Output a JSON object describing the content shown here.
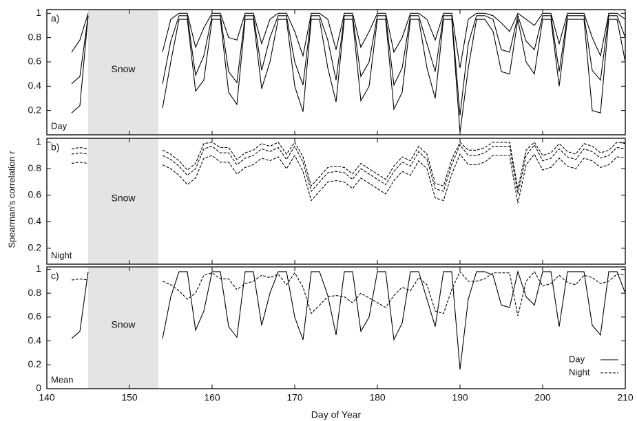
{
  "chart_data": [
    {
      "type": "line",
      "panel_label": "a)",
      "annotation": "Day",
      "shaded_region": {
        "xlim": [
          145,
          153.5
        ],
        "label": "Snow"
      },
      "x": [
        143,
        144,
        145,
        149,
        154,
        155,
        156,
        157,
        158,
        159,
        160,
        161,
        162,
        163,
        164,
        165,
        166,
        167,
        168,
        169,
        170,
        171,
        172,
        173,
        174,
        175,
        176,
        177,
        178,
        179,
        180,
        181,
        182,
        183,
        184,
        185,
        186,
        187,
        188,
        189,
        190,
        191,
        192,
        193,
        194,
        195,
        196,
        197,
        198,
        199,
        200,
        201,
        202,
        203,
        204,
        205,
        206,
        207,
        208,
        209,
        210
      ],
      "xlim": [
        140,
        210
      ],
      "xticks": [
        140,
        150,
        160,
        170,
        180,
        190,
        200,
        210
      ],
      "ylim": [
        0,
        1.03
      ],
      "yticks": [
        0.2,
        0.4,
        0.6,
        0.8,
        1
      ],
      "series": [
        {
          "color": "#000",
          "dash": false,
          "values": [
            0.68,
            0.78,
            1,
            null,
            0.68,
            0.95,
            1,
            1,
            0.72,
            0.88,
            1,
            1,
            0.8,
            0.78,
            1,
            1,
            0.75,
            0.95,
            1,
            1,
            0.85,
            0.65,
            1,
            1,
            0.95,
            0.7,
            1,
            1,
            0.72,
            0.85,
            1,
            1,
            0.68,
            0.8,
            1,
            1,
            0.95,
            0.78,
            1,
            1,
            0.55,
            0.95,
            1,
            1,
            0.98,
            0.92,
            0.85,
            1,
            0.95,
            0.9,
            1,
            1,
            0.75,
            1,
            1,
            1,
            0.8,
            0.65,
            1,
            1,
            0.95
          ]
        },
        {
          "color": "#000",
          "dash": false,
          "values": [
            0.42,
            0.48,
            0.98,
            null,
            0.42,
            0.77,
            0.98,
            0.98,
            0.49,
            0.65,
            0.98,
            0.98,
            0.52,
            0.43,
            0.98,
            0.98,
            0.53,
            0.8,
            0.98,
            0.98,
            0.6,
            0.41,
            0.98,
            0.98,
            0.78,
            0.45,
            0.98,
            0.98,
            0.48,
            0.6,
            0.98,
            0.98,
            0.41,
            0.55,
            0.98,
            0.98,
            0.75,
            0.52,
            0.98,
            0.98,
            0.16,
            0.75,
            0.98,
            0.98,
            0.95,
            0.7,
            0.68,
            0.98,
            0.77,
            0.7,
            0.98,
            0.98,
            0.52,
            0.98,
            0.98,
            0.98,
            0.53,
            0.45,
            0.98,
            0.98,
            0.8
          ]
        },
        {
          "color": "#000",
          "dash": false,
          "values": [
            0.18,
            0.24,
            0.98,
            null,
            0.22,
            0.6,
            0.95,
            0.95,
            0.36,
            0.45,
            0.95,
            0.95,
            0.35,
            0.25,
            0.95,
            0.95,
            0.38,
            0.6,
            0.95,
            0.95,
            0.4,
            0.19,
            0.95,
            0.95,
            0.55,
            0.27,
            0.95,
            0.95,
            0.28,
            0.4,
            0.95,
            0.95,
            0.21,
            0.35,
            0.95,
            0.95,
            0.55,
            0.3,
            0.95,
            0.95,
            0.02,
            0.55,
            0.95,
            0.95,
            0.85,
            0.52,
            0.5,
            0.95,
            0.6,
            0.5,
            0.95,
            0.95,
            0.4,
            0.95,
            0.95,
            0.95,
            0.2,
            0.18,
            0.95,
            0.95,
            0.6
          ]
        }
      ]
    },
    {
      "type": "line",
      "panel_label": "b)",
      "annotation": "Night",
      "shaded_region": {
        "xlim": [
          145,
          153.5
        ],
        "label": "Snow"
      },
      "ylabel": "Spearman's correlation r",
      "x": [
        143,
        144,
        145,
        149,
        154,
        155,
        156,
        157,
        158,
        159,
        160,
        161,
        162,
        163,
        164,
        165,
        166,
        167,
        168,
        169,
        170,
        171,
        172,
        173,
        174,
        175,
        176,
        177,
        178,
        179,
        180,
        181,
        182,
        183,
        184,
        185,
        186,
        187,
        188,
        189,
        190,
        191,
        192,
        193,
        194,
        195,
        196,
        197,
        198,
        199,
        200,
        201,
        202,
        203,
        204,
        205,
        206,
        207,
        208,
        209,
        210
      ],
      "xlim": [
        140,
        210
      ],
      "xticks": [
        140,
        150,
        160,
        170,
        180,
        190,
        200,
        210
      ],
      "ylim": [
        0.08,
        1.03
      ],
      "yticks": [
        0.2,
        0.4,
        0.6,
        0.8,
        1
      ],
      "series": [
        {
          "color": "#000",
          "dash": true,
          "values": [
            0.95,
            0.96,
            0.95,
            null,
            0.94,
            0.91,
            0.86,
            0.79,
            0.84,
            0.99,
            1,
            0.96,
            0.96,
            0.87,
            0.92,
            0.94,
            0.99,
            0.97,
            1,
            0.91,
            1,
            0.89,
            0.67,
            0.74,
            0.81,
            0.82,
            0.81,
            0.76,
            0.84,
            0.8,
            0.76,
            0.72,
            0.82,
            0.89,
            0.86,
            0.97,
            0.91,
            0.69,
            0.67,
            0.87,
            1,
            0.94,
            0.94,
            0.96,
            1,
            1,
            1,
            0.65,
            0.94,
            1,
            0.9,
            0.92,
            0.99,
            0.93,
            0.91,
            0.99,
            0.97,
            0.92,
            0.94,
            1,
            0.99
          ]
        },
        {
          "color": "#000",
          "dash": true,
          "values": [
            0.91,
            0.92,
            0.91,
            null,
            0.9,
            0.87,
            0.82,
            0.75,
            0.8,
            0.95,
            0.97,
            0.92,
            0.92,
            0.83,
            0.88,
            0.9,
            0.95,
            0.93,
            0.96,
            0.87,
            0.97,
            0.85,
            0.63,
            0.7,
            0.77,
            0.78,
            0.77,
            0.72,
            0.8,
            0.76,
            0.72,
            0.68,
            0.78,
            0.85,
            0.82,
            0.93,
            0.87,
            0.65,
            0.63,
            0.83,
            0.98,
            0.9,
            0.9,
            0.92,
            0.97,
            0.97,
            0.97,
            0.61,
            0.9,
            0.98,
            0.86,
            0.88,
            0.95,
            0.89,
            0.87,
            0.95,
            0.93,
            0.88,
            0.9,
            0.96,
            0.95
          ]
        },
        {
          "color": "#000",
          "dash": true,
          "values": [
            0.84,
            0.85,
            0.84,
            null,
            0.83,
            0.8,
            0.75,
            0.68,
            0.73,
            0.88,
            0.9,
            0.85,
            0.85,
            0.76,
            0.81,
            0.83,
            0.88,
            0.86,
            0.89,
            0.8,
            0.9,
            0.78,
            0.56,
            0.63,
            0.7,
            0.71,
            0.7,
            0.65,
            0.73,
            0.69,
            0.65,
            0.61,
            0.71,
            0.78,
            0.75,
            0.86,
            0.8,
            0.58,
            0.56,
            0.76,
            0.91,
            0.83,
            0.83,
            0.85,
            0.9,
            0.9,
            0.9,
            0.54,
            0.83,
            0.91,
            0.79,
            0.81,
            0.88,
            0.82,
            0.8,
            0.88,
            0.86,
            0.81,
            0.83,
            0.89,
            0.88
          ]
        }
      ]
    },
    {
      "type": "line",
      "panel_label": "c)",
      "annotation": "Mean",
      "shaded_region": {
        "xlim": [
          145,
          153.5
        ],
        "label": "Snow"
      },
      "xlabel": "Day of Year",
      "legend": "lower right",
      "x": [
        143,
        144,
        145,
        149,
        154,
        155,
        156,
        157,
        158,
        159,
        160,
        161,
        162,
        163,
        164,
        165,
        166,
        167,
        168,
        169,
        170,
        171,
        172,
        173,
        174,
        175,
        176,
        177,
        178,
        179,
        180,
        181,
        182,
        183,
        184,
        185,
        186,
        187,
        188,
        189,
        190,
        191,
        192,
        193,
        194,
        195,
        196,
        197,
        198,
        199,
        200,
        201,
        202,
        203,
        204,
        205,
        206,
        207,
        208,
        209,
        210
      ],
      "xlim": [
        140,
        210
      ],
      "xticks": [
        140,
        150,
        160,
        170,
        180,
        190,
        200,
        210
      ],
      "ylim": [
        0,
        1.02
      ],
      "yticks": [
        0,
        0.2,
        0.4,
        0.6,
        0.8,
        1
      ],
      "series": [
        {
          "name": "Day",
          "color": "#000",
          "dash": false,
          "values": [
            0.42,
            0.48,
            0.98,
            null,
            0.42,
            0.77,
            0.98,
            0.98,
            0.49,
            0.65,
            0.98,
            0.98,
            0.52,
            0.43,
            0.98,
            0.98,
            0.53,
            0.8,
            0.98,
            0.98,
            0.6,
            0.41,
            0.98,
            0.98,
            0.78,
            0.45,
            0.98,
            0.98,
            0.48,
            0.6,
            0.98,
            0.98,
            0.41,
            0.55,
            0.98,
            0.98,
            0.75,
            0.52,
            0.98,
            0.98,
            0.16,
            0.75,
            0.98,
            0.98,
            0.95,
            0.7,
            0.68,
            0.98,
            0.77,
            0.7,
            0.98,
            0.98,
            0.52,
            0.98,
            0.98,
            0.98,
            0.53,
            0.45,
            0.98,
            0.98,
            0.8
          ]
        },
        {
          "name": "Night",
          "color": "#000",
          "dash": true,
          "values": [
            0.91,
            0.92,
            0.91,
            null,
            0.9,
            0.87,
            0.82,
            0.75,
            0.8,
            0.95,
            0.97,
            0.92,
            0.92,
            0.83,
            0.88,
            0.9,
            0.95,
            0.93,
            0.96,
            0.87,
            0.97,
            0.85,
            0.63,
            0.7,
            0.77,
            0.78,
            0.77,
            0.72,
            0.8,
            0.76,
            0.72,
            0.68,
            0.78,
            0.85,
            0.82,
            0.93,
            0.87,
            0.65,
            0.63,
            0.83,
            0.98,
            0.9,
            0.9,
            0.92,
            0.97,
            0.97,
            0.97,
            0.61,
            0.9,
            0.98,
            0.86,
            0.88,
            0.95,
            0.89,
            0.87,
            0.95,
            0.93,
            0.88,
            0.9,
            0.96,
            0.95
          ]
        }
      ]
    }
  ]
}
